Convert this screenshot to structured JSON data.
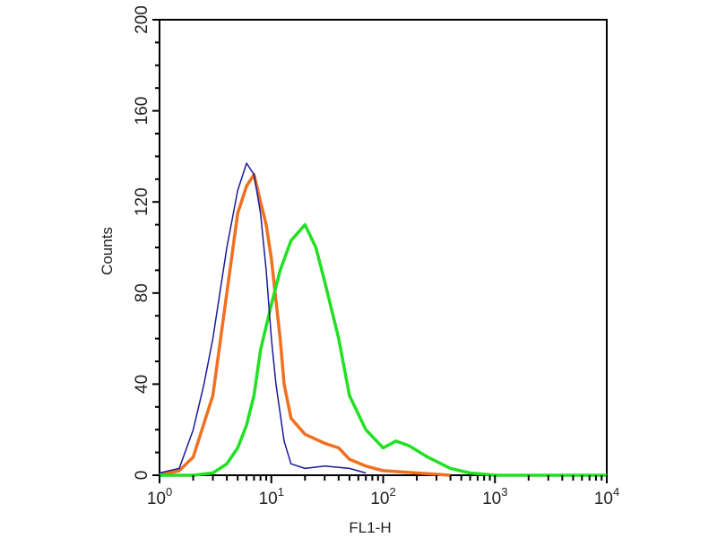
{
  "chart_data": {
    "type": "line",
    "title": "",
    "xlabel": "FL1-H",
    "ylabel": "Counts",
    "xscale": "log",
    "xlim": [
      1,
      10000
    ],
    "ylim": [
      0,
      200
    ],
    "x_ticks": [
      {
        "base": "10",
        "exp": "0"
      },
      {
        "base": "10",
        "exp": "1"
      },
      {
        "base": "10",
        "exp": "2"
      },
      {
        "base": "10",
        "exp": "3"
      },
      {
        "base": "10",
        "exp": "4"
      }
    ],
    "y_ticks": [
      0,
      40,
      80,
      120,
      160,
      200
    ],
    "grid": false,
    "series": [
      {
        "name": "blue",
        "color": "#1a1a9a",
        "x": [
          1,
          1.5,
          2,
          2.5,
          3,
          4,
          5,
          6,
          7,
          8,
          9,
          10,
          11,
          13,
          15,
          20,
          30,
          50,
          70
        ],
        "y": [
          1,
          3,
          20,
          40,
          60,
          100,
          125,
          137,
          132,
          115,
          90,
          60,
          40,
          15,
          5,
          3,
          4,
          3,
          1
        ]
      },
      {
        "name": "orange",
        "color": "#f07020",
        "x": [
          1,
          1.5,
          2,
          3,
          4,
          5,
          6,
          7,
          8,
          9,
          10,
          12,
          13,
          15,
          20,
          30,
          40,
          50,
          70,
          100,
          200,
          400
        ],
        "y": [
          0,
          2,
          8,
          35,
          80,
          115,
          127,
          132,
          120,
          110,
          95,
          60,
          40,
          25,
          18,
          14,
          12,
          7,
          4,
          2,
          1,
          0
        ]
      },
      {
        "name": "green",
        "color": "#22e022",
        "x": [
          1,
          2,
          3,
          4,
          5,
          6,
          7,
          8,
          10,
          12,
          15,
          20,
          25,
          30,
          40,
          50,
          70,
          100,
          130,
          170,
          250,
          400,
          600,
          1000,
          10000
        ],
        "y": [
          0,
          0,
          1,
          5,
          12,
          22,
          35,
          55,
          75,
          90,
          103,
          110,
          100,
          85,
          60,
          35,
          20,
          12,
          15,
          13,
          8,
          3,
          1,
          0,
          0
        ]
      }
    ]
  }
}
